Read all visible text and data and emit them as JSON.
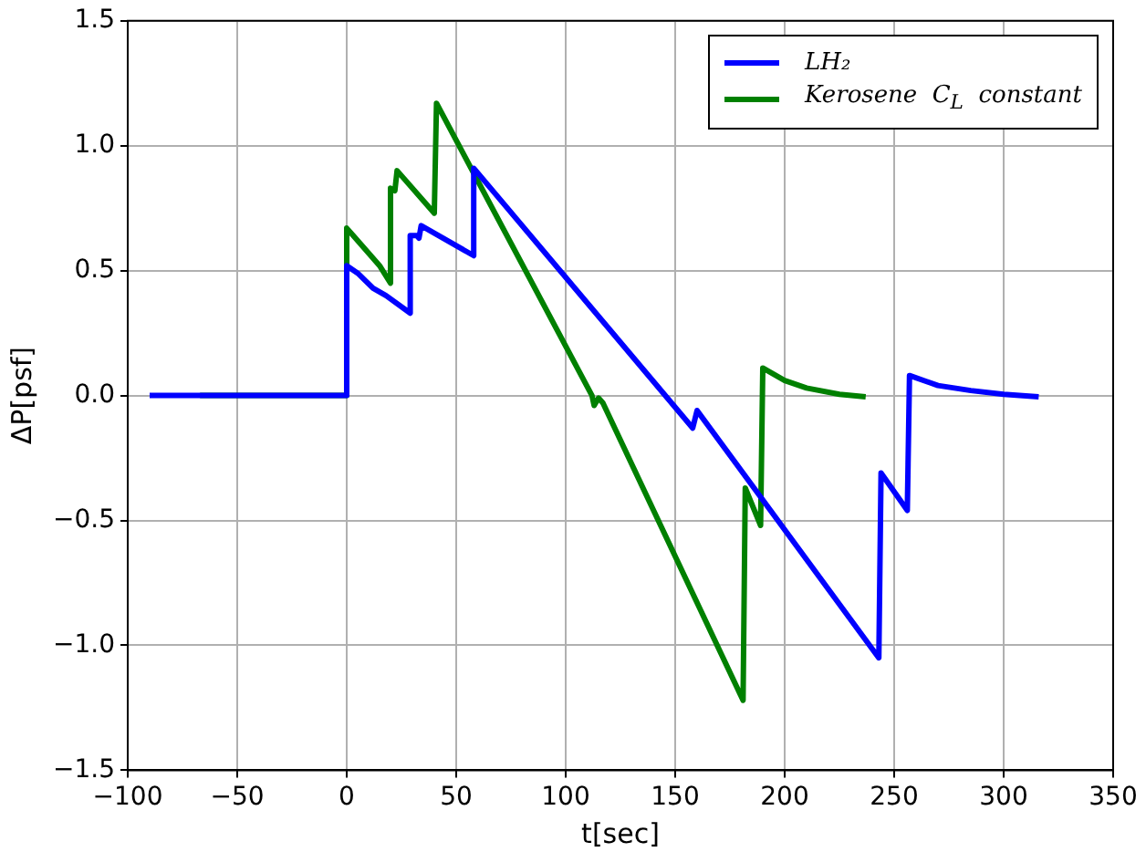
{
  "chart_data": {
    "type": "line",
    "xlabel": "t[sec]",
    "ylabel": "ΔP[psf]",
    "xlim": [
      -100,
      350
    ],
    "xticks": [
      {
        "value": -100,
        "label": "−100"
      },
      {
        "value": -50,
        "label": "−50"
      },
      {
        "value": 0,
        "label": "0"
      },
      {
        "value": 50,
        "label": "50"
      },
      {
        "value": 100,
        "label": "100"
      },
      {
        "value": 150,
        "label": "150"
      },
      {
        "value": 200,
        "label": "200"
      },
      {
        "value": 250,
        "label": "250"
      },
      {
        "value": 300,
        "label": "300"
      },
      {
        "value": 350,
        "label": "350"
      }
    ],
    "ylim": [
      -1.5,
      1.5
    ],
    "yticks": [
      {
        "value": -1.5,
        "label": "−1.5"
      },
      {
        "value": -1,
        "label": "−1.0"
      },
      {
        "value": -0.5,
        "label": "−0.5"
      },
      {
        "value": 0,
        "label": "0.0"
      },
      {
        "value": 0.5,
        "label": "0.5"
      },
      {
        "value": 1,
        "label": "1.0"
      },
      {
        "value": 1.5,
        "label": "1.5"
      }
    ],
    "grid": true,
    "legend": "top right",
    "line_style": "solid",
    "marker": "none",
    "series": [
      {
        "name": "LH₂",
        "color": "#0000ff",
        "x": [
          -90,
          0,
          0,
          5,
          12,
          18,
          29,
          29,
          32,
          33,
          34,
          58,
          58,
          158,
          160,
          243,
          244,
          256,
          257,
          270,
          285,
          300,
          316
        ],
        "values": [
          0,
          0,
          0.52,
          0.49,
          0.43,
          0.4,
          0.33,
          0.64,
          0.64,
          0.63,
          0.68,
          0.56,
          0.91,
          -0.13,
          -0.06,
          -1.05,
          -0.31,
          -0.46,
          0.08,
          0.04,
          0.02,
          0.005,
          -0.005
        ]
      },
      {
        "name": "Kerosene  C$_{L}$  constant",
        "color": "#008000",
        "x": [
          -67,
          0,
          0,
          10,
          15,
          20,
          20,
          22,
          23,
          40,
          41,
          112,
          113,
          115,
          117,
          181,
          182,
          189,
          190,
          200,
          210,
          225,
          237
        ],
        "values": [
          0,
          0,
          0.67,
          0.57,
          0.52,
          0.45,
          0.83,
          0.82,
          0.9,
          0.73,
          1.17,
          0,
          -0.04,
          -0.01,
          -0.03,
          -1.22,
          -0.37,
          -0.52,
          0.11,
          0.06,
          0.03,
          0.005,
          -0.005
        ]
      }
    ]
  }
}
